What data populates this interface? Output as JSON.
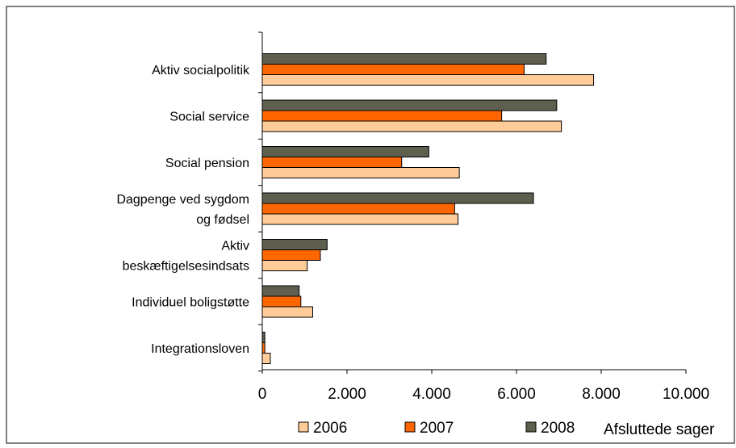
{
  "chart_data": {
    "type": "bar",
    "orientation": "horizontal",
    "categories": [
      [
        "Aktiv socialpolitik"
      ],
      [
        "Social service"
      ],
      [
        "Social pension"
      ],
      [
        "Dagpenge ved sygdom",
        "og fødsel"
      ],
      [
        "Aktiv",
        "beskæftigelsesindsats"
      ],
      [
        "Individuel boligstøtte"
      ],
      [
        "Integrationsloven"
      ]
    ],
    "series": [
      {
        "name": "2006",
        "color": "#ffcc99",
        "values": [
          7820,
          7060,
          4650,
          4620,
          1060,
          1190,
          190
        ]
      },
      {
        "name": "2007",
        "color": "#ff6600",
        "values": [
          6180,
          5650,
          3290,
          4540,
          1370,
          910,
          60
        ]
      },
      {
        "name": "2008",
        "color": "#5f5f4f",
        "values": [
          6700,
          6950,
          3930,
          6400,
          1530,
          870,
          60
        ]
      }
    ],
    "xlim": [
      0,
      10000
    ],
    "xticks": [
      0,
      2000,
      4000,
      6000,
      8000,
      10000
    ],
    "xtick_labels": [
      "0",
      "2.000",
      "4.000",
      "6.000",
      "8.000",
      "10.000"
    ],
    "xlabel": "Afsluttede sager",
    "legend_position": "bottom",
    "grid": false
  }
}
